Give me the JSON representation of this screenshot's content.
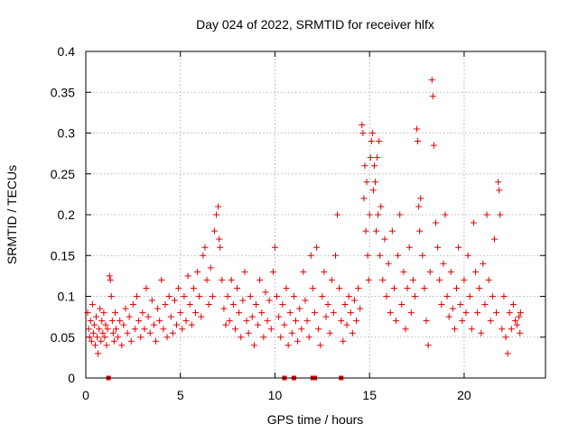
{
  "chart_data": {
    "type": "scatter",
    "title": "Day 024 of 2022, SRMTID for receiver hlfx",
    "xlabel": "GPS time / hours",
    "ylabel": "SRMTID / TECUs",
    "xlim": [
      0,
      24.3
    ],
    "ylim": [
      0,
      0.4
    ],
    "xticks": [
      0,
      5,
      10,
      15,
      20
    ],
    "xtick_labels": [
      "0",
      "5",
      "10",
      "15",
      "20"
    ],
    "yticks": [
      0,
      0.05,
      0.1,
      0.15,
      0.2,
      0.25,
      0.3,
      0.35,
      0.4
    ],
    "ytick_labels": [
      "0",
      "0.05",
      "0.1",
      "0.15",
      "0.2",
      "0.25",
      "0.3",
      "0.35",
      "0.4"
    ],
    "grid": true,
    "marker": "+",
    "color": "#e00000",
    "series": [
      {
        "name": "SRMTID",
        "points": [
          [
            0.1,
            0.08
          ],
          [
            0.15,
            0.06
          ],
          [
            0.2,
            0.05
          ],
          [
            0.25,
            0.07
          ],
          [
            0.3,
            0.045
          ],
          [
            0.35,
            0.09
          ],
          [
            0.4,
            0.055
          ],
          [
            0.45,
            0.065
          ],
          [
            0.5,
            0.04
          ],
          [
            0.55,
            0.075
          ],
          [
            0.6,
            0.05
          ],
          [
            0.65,
            0.03
          ],
          [
            0.7,
            0.06
          ],
          [
            0.75,
            0.085
          ],
          [
            0.8,
            0.045
          ],
          [
            0.85,
            0.07
          ],
          [
            0.9,
            0.055
          ],
          [
            0.95,
            0.08
          ],
          [
            1.0,
            0.05
          ],
          [
            1.05,
            0.065
          ],
          [
            1.1,
            0.04
          ],
          [
            1.15,
            0.06
          ],
          [
            1.25,
            0.125
          ],
          [
            1.3,
            0.12
          ],
          [
            1.35,
            0.1
          ],
          [
            1.4,
            0.07
          ],
          [
            1.45,
            0.055
          ],
          [
            1.5,
            0.045
          ],
          [
            1.55,
            0.08
          ],
          [
            1.6,
            0.06
          ],
          [
            1.7,
            0.05
          ],
          [
            1.8,
            0.07
          ],
          [
            1.9,
            0.04
          ],
          [
            2.0,
            0.065
          ],
          [
            2.1,
            0.085
          ],
          [
            2.2,
            0.055
          ],
          [
            2.3,
            0.075
          ],
          [
            2.4,
            0.045
          ],
          [
            2.5,
            0.09
          ],
          [
            2.6,
            0.06
          ],
          [
            2.7,
            0.1
          ],
          [
            2.8,
            0.07
          ],
          [
            2.9,
            0.05
          ],
          [
            3.0,
            0.08
          ],
          [
            3.1,
            0.06
          ],
          [
            3.2,
            0.11
          ],
          [
            3.3,
            0.075
          ],
          [
            3.4,
            0.055
          ],
          [
            3.5,
            0.095
          ],
          [
            3.6,
            0.065
          ],
          [
            3.7,
            0.045
          ],
          [
            3.8,
            0.085
          ],
          [
            3.9,
            0.07
          ],
          [
            4.0,
            0.12
          ],
          [
            4.1,
            0.06
          ],
          [
            4.2,
            0.09
          ],
          [
            4.3,
            0.05
          ],
          [
            4.4,
            0.1
          ],
          [
            4.5,
            0.075
          ],
          [
            4.6,
            0.055
          ],
          [
            4.7,
            0.095
          ],
          [
            4.8,
            0.065
          ],
          [
            4.9,
            0.11
          ],
          [
            5.0,
            0.08
          ],
          [
            5.1,
            0.06
          ],
          [
            5.2,
            0.1
          ],
          [
            5.3,
            0.07
          ],
          [
            5.4,
            0.125
          ],
          [
            5.5,
            0.09
          ],
          [
            5.6,
            0.065
          ],
          [
            5.7,
            0.11
          ],
          [
            5.8,
            0.08
          ],
          [
            5.9,
            0.13
          ],
          [
            6.0,
            0.1
          ],
          [
            6.1,
            0.075
          ],
          [
            6.2,
            0.15
          ],
          [
            6.3,
            0.16
          ],
          [
            6.4,
            0.12
          ],
          [
            6.5,
            0.09
          ],
          [
            6.6,
            0.135
          ],
          [
            6.7,
            0.1
          ],
          [
            6.8,
            0.18
          ],
          [
            6.9,
            0.2
          ],
          [
            7.0,
            0.21
          ],
          [
            7.05,
            0.17
          ],
          [
            7.1,
            0.16
          ],
          [
            7.2,
            0.12
          ],
          [
            7.3,
            0.085
          ],
          [
            7.4,
            0.065
          ],
          [
            7.5,
            0.1
          ],
          [
            7.6,
            0.07
          ],
          [
            7.7,
            0.12
          ],
          [
            7.8,
            0.09
          ],
          [
            7.9,
            0.06
          ],
          [
            8.0,
            0.11
          ],
          [
            8.1,
            0.08
          ],
          [
            8.2,
            0.05
          ],
          [
            8.3,
            0.095
          ],
          [
            8.4,
            0.13
          ],
          [
            8.5,
            0.07
          ],
          [
            8.6,
            0.055
          ],
          [
            8.7,
            0.1
          ],
          [
            8.8,
            0.075
          ],
          [
            8.9,
            0.04
          ],
          [
            9.0,
            0.09
          ],
          [
            9.1,
            0.065
          ],
          [
            9.2,
            0.12
          ],
          [
            9.3,
            0.08
          ],
          [
            9.4,
            0.05
          ],
          [
            9.5,
            0.105
          ],
          [
            9.6,
            0.07
          ],
          [
            9.7,
            0.095
          ],
          [
            9.8,
            0.06
          ],
          [
            9.9,
            0.13
          ],
          [
            10.0,
            0.16
          ],
          [
            10.1,
            0.1
          ],
          [
            10.2,
            0.075
          ],
          [
            10.3,
            0.05
          ],
          [
            10.4,
            0.09
          ],
          [
            10.5,
            0.065
          ],
          [
            10.6,
            0.11
          ],
          [
            10.7,
            0.04
          ],
          [
            10.8,
            0.08
          ],
          [
            10.9,
            0.055
          ],
          [
            11.0,
            0.1
          ],
          [
            11.1,
            0.07
          ],
          [
            11.2,
            0.045
          ],
          [
            11.3,
            0.085
          ],
          [
            11.4,
            0.06
          ],
          [
            11.5,
            0.13
          ],
          [
            11.6,
            0.095
          ],
          [
            11.7,
            0.07
          ],
          [
            11.8,
            0.05
          ],
          [
            11.9,
            0.15
          ],
          [
            12.0,
            0.11
          ],
          [
            12.1,
            0.08
          ],
          [
            12.2,
            0.16
          ],
          [
            12.3,
            0.06
          ],
          [
            12.4,
            0.04
          ],
          [
            12.5,
            0.1
          ],
          [
            12.6,
            0.13
          ],
          [
            12.7,
            0.075
          ],
          [
            12.8,
            0.09
          ],
          [
            12.9,
            0.055
          ],
          [
            13.0,
            0.12
          ],
          [
            13.1,
            0.08
          ],
          [
            13.2,
            0.15
          ],
          [
            13.3,
            0.2
          ],
          [
            13.4,
            0.11
          ],
          [
            13.5,
            0.07
          ],
          [
            13.6,
            0.045
          ],
          [
            13.7,
            0.09
          ],
          [
            13.8,
            0.065
          ],
          [
            13.9,
            0.1
          ],
          [
            14.0,
            0.08
          ],
          [
            14.1,
            0.055
          ],
          [
            14.2,
            0.095
          ],
          [
            14.3,
            0.07
          ],
          [
            14.4,
            0.11
          ],
          [
            14.5,
            0.085
          ],
          [
            14.6,
            0.31
          ],
          [
            14.65,
            0.3
          ],
          [
            14.7,
            0.22
          ],
          [
            14.75,
            0.26
          ],
          [
            14.8,
            0.18
          ],
          [
            14.85,
            0.24
          ],
          [
            14.9,
            0.15
          ],
          [
            14.95,
            0.12
          ],
          [
            15.0,
            0.2
          ],
          [
            15.05,
            0.27
          ],
          [
            15.1,
            0.29
          ],
          [
            15.15,
            0.3
          ],
          [
            15.2,
            0.23
          ],
          [
            15.25,
            0.26
          ],
          [
            15.3,
            0.24
          ],
          [
            15.35,
            0.18
          ],
          [
            15.4,
            0.27
          ],
          [
            15.45,
            0.2
          ],
          [
            15.5,
            0.29
          ],
          [
            15.55,
            0.15
          ],
          [
            15.6,
            0.21
          ],
          [
            15.7,
            0.12
          ],
          [
            15.8,
            0.17
          ],
          [
            15.9,
            0.1
          ],
          [
            16.0,
            0.14
          ],
          [
            16.1,
            0.08
          ],
          [
            16.2,
            0.18
          ],
          [
            16.3,
            0.11
          ],
          [
            16.4,
            0.07
          ],
          [
            16.5,
            0.15
          ],
          [
            16.6,
            0.2
          ],
          [
            16.7,
            0.09
          ],
          [
            16.8,
            0.13
          ],
          [
            16.9,
            0.06
          ],
          [
            17.0,
            0.11
          ],
          [
            17.1,
            0.16
          ],
          [
            17.2,
            0.08
          ],
          [
            17.3,
            0.12
          ],
          [
            17.4,
            0.1
          ],
          [
            17.5,
            0.305
          ],
          [
            17.55,
            0.29
          ],
          [
            17.6,
            0.21
          ],
          [
            17.65,
            0.18
          ],
          [
            17.7,
            0.22
          ],
          [
            17.8,
            0.15
          ],
          [
            17.9,
            0.11
          ],
          [
            18.0,
            0.07
          ],
          [
            18.1,
            0.04
          ],
          [
            18.2,
            0.13
          ],
          [
            18.3,
            0.365
          ],
          [
            18.35,
            0.345
          ],
          [
            18.4,
            0.285
          ],
          [
            18.5,
            0.19
          ],
          [
            18.6,
            0.16
          ],
          [
            18.7,
            0.12
          ],
          [
            18.8,
            0.09
          ],
          [
            18.9,
            0.14
          ],
          [
            19.0,
            0.2
          ],
          [
            19.1,
            0.1
          ],
          [
            19.2,
            0.075
          ],
          [
            19.3,
            0.13
          ],
          [
            19.4,
            0.085
          ],
          [
            19.5,
            0.06
          ],
          [
            19.6,
            0.11
          ],
          [
            19.7,
            0.16
          ],
          [
            19.8,
            0.09
          ],
          [
            19.9,
            0.07
          ],
          [
            20.0,
            0.12
          ],
          [
            20.1,
            0.08
          ],
          [
            20.2,
            0.15
          ],
          [
            20.3,
            0.1
          ],
          [
            20.4,
            0.06
          ],
          [
            20.5,
            0.19
          ],
          [
            20.6,
            0.13
          ],
          [
            20.7,
            0.08
          ],
          [
            20.8,
            0.11
          ],
          [
            20.9,
            0.055
          ],
          [
            21.0,
            0.14
          ],
          [
            21.1,
            0.09
          ],
          [
            21.2,
            0.2
          ],
          [
            21.3,
            0.12
          ],
          [
            21.4,
            0.07
          ],
          [
            21.5,
            0.1
          ],
          [
            21.6,
            0.17
          ],
          [
            21.7,
            0.08
          ],
          [
            21.8,
            0.24
          ],
          [
            21.85,
            0.23
          ],
          [
            21.9,
            0.2
          ],
          [
            22.0,
            0.06
          ],
          [
            22.1,
            0.1
          ],
          [
            22.2,
            0.05
          ],
          [
            22.3,
            0.03
          ],
          [
            22.4,
            0.08
          ],
          [
            22.5,
            0.06
          ],
          [
            22.6,
            0.09
          ],
          [
            22.7,
            0.07
          ],
          [
            22.8,
            0.065
          ],
          [
            22.9,
            0.075
          ],
          [
            22.95,
            0.055
          ],
          [
            22.98,
            0.08
          ]
        ]
      }
    ],
    "zero_markers_x": [
      1.2,
      10.5,
      11.0,
      12.0,
      12.1,
      13.5
    ]
  }
}
